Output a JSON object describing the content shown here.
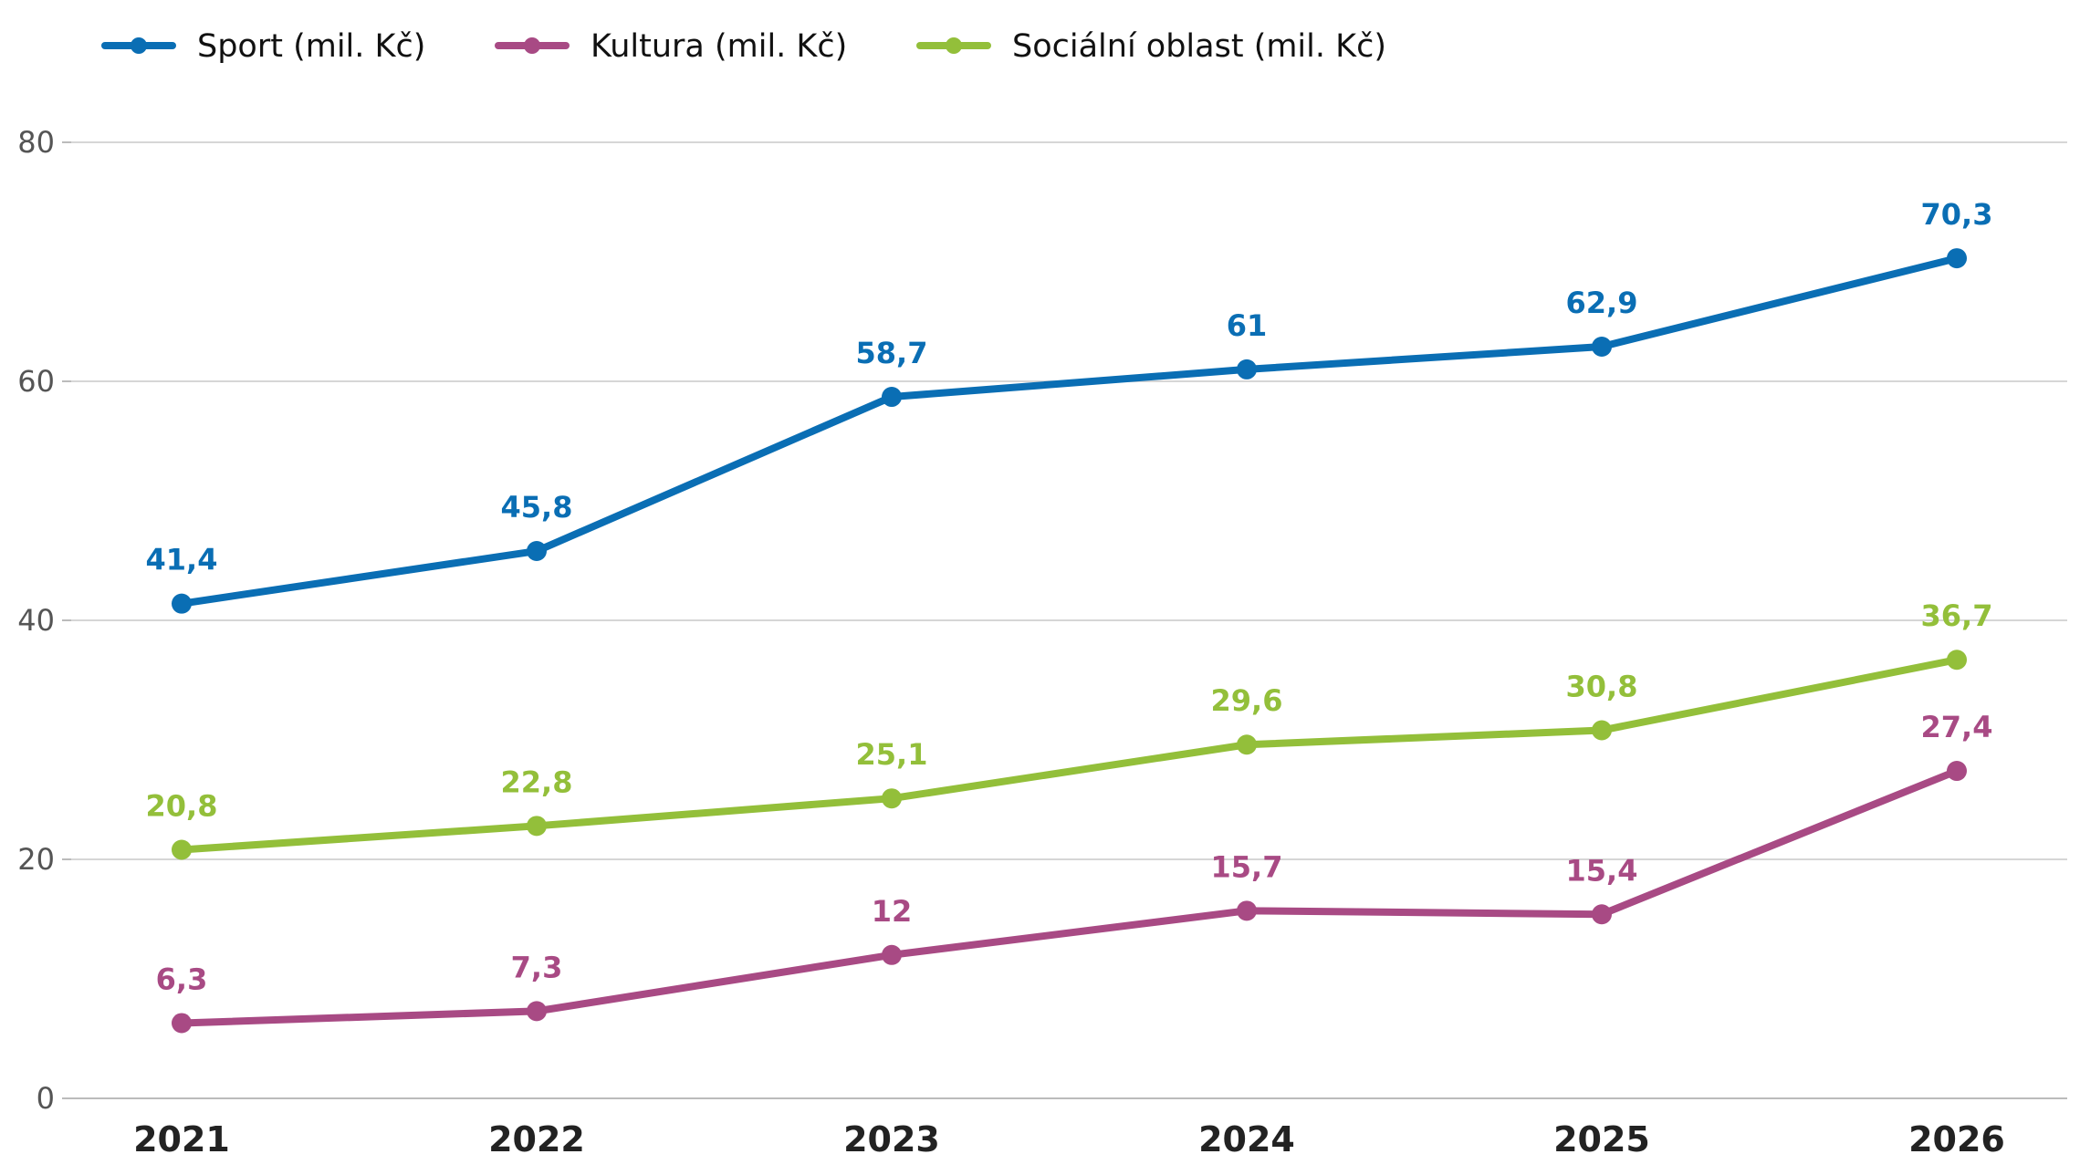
{
  "chart_data": {
    "type": "line",
    "categories": [
      "2021",
      "2022",
      "2023",
      "2024",
      "2025",
      "2026"
    ],
    "series": [
      {
        "name": "Sport (mil. Kč)",
        "color": "#0a6eb4",
        "values": [
          41.4,
          45.8,
          58.7,
          61,
          62.9,
          70.3
        ],
        "labels": [
          "41,4",
          "45,8",
          "58,7",
          "61",
          "62,9",
          "70,3"
        ]
      },
      {
        "name": "Kultura (mil. Kč)",
        "color": "#a84a84",
        "values": [
          6.3,
          7.3,
          12,
          15.7,
          15.4,
          27.4
        ],
        "labels": [
          "6,3",
          "7,3",
          "12",
          "15,7",
          "15,4",
          "27,4"
        ]
      },
      {
        "name": "Sociální oblast (mil. Kč)",
        "color": "#93bf3a",
        "values": [
          20.8,
          22.8,
          25.1,
          29.6,
          30.8,
          36.7
        ],
        "labels": [
          "20,8",
          "22,8",
          "25,1",
          "29,6",
          "30,8",
          "36,7"
        ]
      }
    ],
    "ylim": [
      0,
      80
    ],
    "yticks": [
      0,
      20,
      40,
      60,
      80
    ],
    "grid": true,
    "legend": "top-left"
  }
}
